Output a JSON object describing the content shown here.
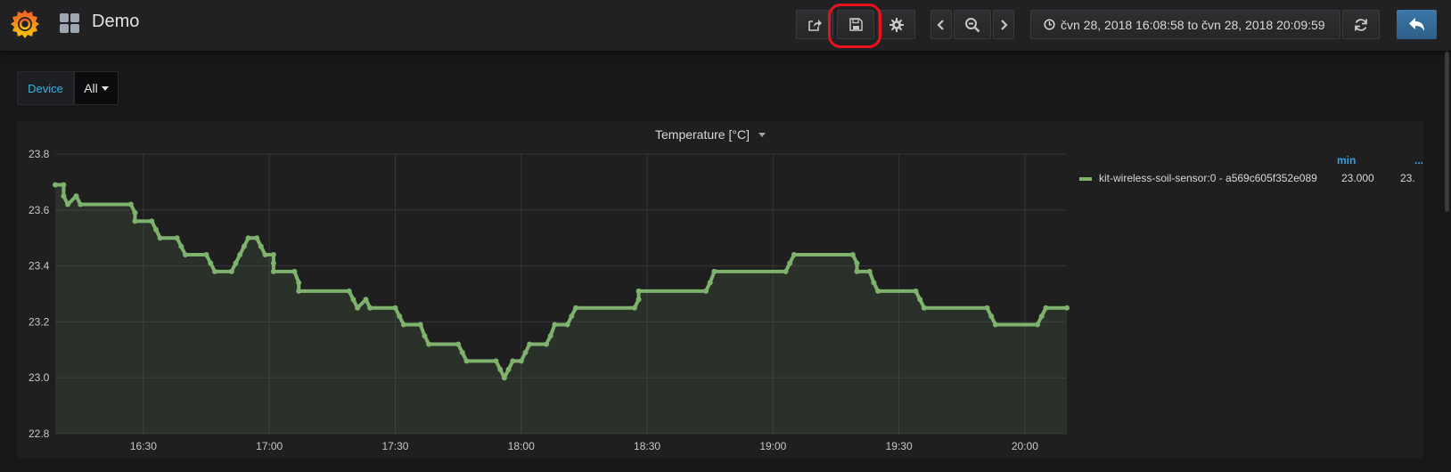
{
  "navbar": {
    "dashboard_title": "Demo",
    "time_range": "čvn 28, 2018 16:08:58 to čvn 28, 2018 20:09:59",
    "buttons": [
      "share",
      "save",
      "settings",
      "time-back",
      "zoom-out",
      "time-forward",
      "refresh",
      "back-to-dashboard"
    ]
  },
  "variables": {
    "device_label": "Device",
    "device_value": "All"
  },
  "panel": {
    "title": "Temperature [°C]",
    "legend": {
      "columns": [
        "min",
        "..."
      ],
      "series_name": "kit-wireless-soil-sensor:0 - a569c605f352e089",
      "min_value": "23.000",
      "truncated_value": "23."
    }
  },
  "colors": {
    "series": "#7eb26d",
    "accent": "#33b5e5",
    "highlight": "#e8131a"
  },
  "chart_data": {
    "type": "line",
    "title": "Temperature [°C]",
    "xlabel": "",
    "ylabel": "",
    "x_ticks": [
      "16:30",
      "17:00",
      "17:30",
      "18:00",
      "18:30",
      "19:00",
      "19:30",
      "20:00"
    ],
    "y_ticks": [
      "22.8",
      "23.0",
      "23.2",
      "23.4",
      "23.6",
      "23.8"
    ],
    "ylim": [
      22.8,
      23.8
    ],
    "xlim": [
      "16:09",
      "20:10"
    ],
    "grid": true,
    "legend_position": "right",
    "series": [
      {
        "name": "kit-wireless-soil-sensor:0 - a569c605f352e089",
        "points": [
          [
            "16:09",
            23.69
          ],
          [
            "16:11",
            23.69
          ],
          [
            "16:11",
            23.65
          ],
          [
            "16:12",
            23.62
          ],
          [
            "16:14",
            23.65
          ],
          [
            "16:15",
            23.62
          ],
          [
            "16:27",
            23.62
          ],
          [
            "16:28",
            23.59
          ],
          [
            "16:28",
            23.56
          ],
          [
            "16:32",
            23.56
          ],
          [
            "16:33",
            23.53
          ],
          [
            "16:34",
            23.5
          ],
          [
            "16:38",
            23.5
          ],
          [
            "16:39",
            23.47
          ],
          [
            "16:40",
            23.44
          ],
          [
            "16:45",
            23.44
          ],
          [
            "16:46",
            23.41
          ],
          [
            "16:47",
            23.38
          ],
          [
            "16:51",
            23.38
          ],
          [
            "16:52",
            23.41
          ],
          [
            "16:53",
            23.44
          ],
          [
            "16:54",
            23.47
          ],
          [
            "16:55",
            23.5
          ],
          [
            "16:57",
            23.5
          ],
          [
            "16:58",
            23.47
          ],
          [
            "16:59",
            23.44
          ],
          [
            "17:01",
            23.44
          ],
          [
            "17:01",
            23.41
          ],
          [
            "17:01",
            23.38
          ],
          [
            "17:06",
            23.38
          ],
          [
            "17:07",
            23.34
          ],
          [
            "17:07",
            23.31
          ],
          [
            "17:19",
            23.31
          ],
          [
            "17:20",
            23.28
          ],
          [
            "17:21",
            23.25
          ],
          [
            "17:23",
            23.28
          ],
          [
            "17:24",
            23.25
          ],
          [
            "17:30",
            23.25
          ],
          [
            "17:31",
            23.22
          ],
          [
            "17:32",
            23.19
          ],
          [
            "17:36",
            23.19
          ],
          [
            "17:37",
            23.15
          ],
          [
            "17:38",
            23.12
          ],
          [
            "17:45",
            23.12
          ],
          [
            "17:46",
            23.09
          ],
          [
            "17:47",
            23.06
          ],
          [
            "17:54",
            23.06
          ],
          [
            "17:55",
            23.03
          ],
          [
            "17:56",
            23.0
          ],
          [
            "17:57",
            23.03
          ],
          [
            "17:58",
            23.06
          ],
          [
            "18:00",
            23.06
          ],
          [
            "18:01",
            23.09
          ],
          [
            "18:02",
            23.12
          ],
          [
            "18:06",
            23.12
          ],
          [
            "18:07",
            23.15
          ],
          [
            "18:08",
            23.19
          ],
          [
            "18:11",
            23.19
          ],
          [
            "18:12",
            23.22
          ],
          [
            "18:13",
            23.25
          ],
          [
            "18:27",
            23.25
          ],
          [
            "18:28",
            23.28
          ],
          [
            "18:28",
            23.31
          ],
          [
            "18:44",
            23.31
          ],
          [
            "18:45",
            23.34
          ],
          [
            "18:46",
            23.38
          ],
          [
            "19:03",
            23.38
          ],
          [
            "19:04",
            23.41
          ],
          [
            "19:05",
            23.44
          ],
          [
            "19:19",
            23.44
          ],
          [
            "19:20",
            23.41
          ],
          [
            "19:20",
            23.38
          ],
          [
            "19:23",
            23.38
          ],
          [
            "19:24",
            23.34
          ],
          [
            "19:25",
            23.31
          ],
          [
            "19:34",
            23.31
          ],
          [
            "19:35",
            23.28
          ],
          [
            "19:36",
            23.25
          ],
          [
            "19:51",
            23.25
          ],
          [
            "19:52",
            23.22
          ],
          [
            "19:53",
            23.19
          ],
          [
            "20:03",
            23.19
          ],
          [
            "20:04",
            23.22
          ],
          [
            "20:05",
            23.25
          ],
          [
            "20:10",
            23.25
          ]
        ]
      }
    ]
  }
}
